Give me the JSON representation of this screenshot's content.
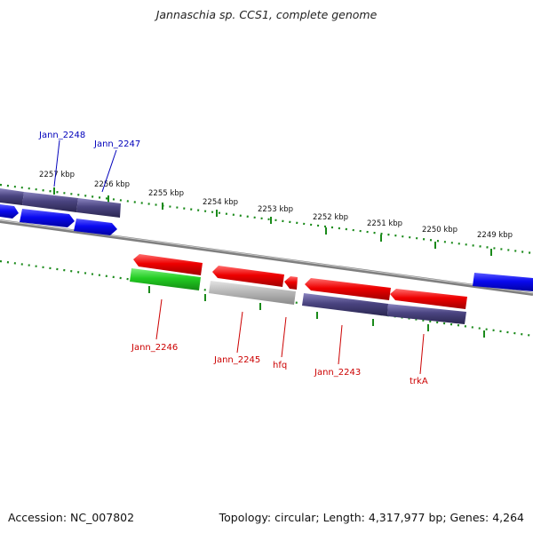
{
  "title": "Jannaschia sp. CCS1, complete genome",
  "footer": {
    "accession": "Accession: NC_007802",
    "summary": "Topology: circular; Length: 4,317,977 bp; Genes: 4,264"
  },
  "kbp_labels": [
    "2257 kbp",
    "2256 kbp",
    "2255 kbp",
    "2254 kbp",
    "2253 kbp",
    "2252 kbp",
    "2251 kbp",
    "2250 kbp",
    "2249 kbp"
  ],
  "gene_labels": {
    "top": [
      "Jann_2248",
      "Jann_2247"
    ],
    "bottom": [
      "Jann_2246",
      "Jann_2245",
      "hfq",
      "Jann_2243",
      "trkA"
    ]
  },
  "colors": {
    "forward_cds": "#1010f0",
    "forward_purple": "#4a4480",
    "reverse_cds": "#e00000",
    "reverse_purple": "#4a4480",
    "green_gene": "#22cc22",
    "grey_gene": "#b0b0b0",
    "ruler_ticks": "#1a8a1a",
    "backbone": "#888888",
    "top_label": "#0000bb",
    "bottom_label": "#cc0000"
  }
}
